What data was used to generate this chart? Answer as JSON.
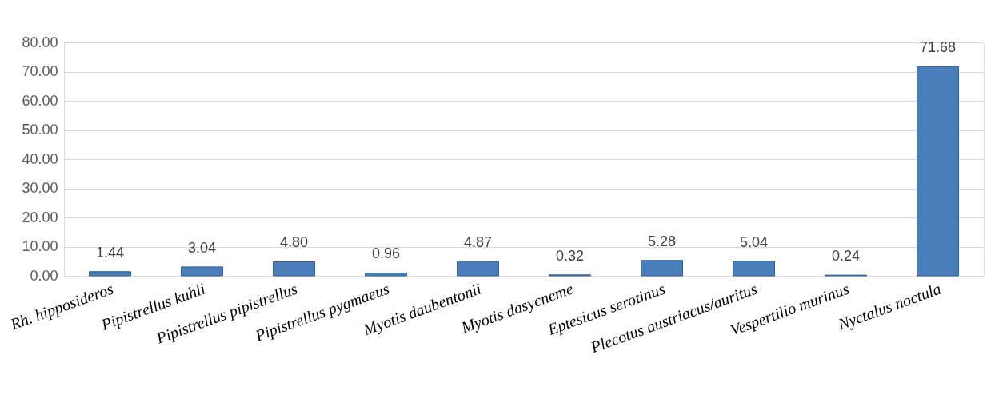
{
  "chart_data": {
    "type": "bar",
    "categories": [
      "Rh. hipposideros",
      "Pipistrellus kuhli",
      "Pipistrellus pipistrellus",
      "Pipistrellus pygmaeus",
      "Myotis daubentonii",
      "Myotis dasycneme",
      "Eptesicus serotinus",
      "Plecotus austriacus/auritus",
      "Vespertilio murinus",
      "Nyctalus noctula"
    ],
    "values": [
      1.44,
      3.04,
      4.8,
      0.96,
      4.87,
      0.32,
      5.28,
      5.04,
      0.24,
      71.68
    ],
    "color": "#4a7ebb",
    "ylim": [
      0,
      80
    ],
    "yticks": [
      {
        "value": 0,
        "label": "0.00"
      },
      {
        "value": 10,
        "label": "10.00"
      },
      {
        "value": 20,
        "label": "20.00"
      },
      {
        "value": 30,
        "label": "30.00"
      },
      {
        "value": 40,
        "label": "40.00"
      },
      {
        "value": 50,
        "label": "50.00"
      },
      {
        "value": 60,
        "label": "60.00"
      },
      {
        "value": 70,
        "label": "70.00"
      },
      {
        "value": 80,
        "label": "80.00"
      }
    ],
    "value_labels": [
      "1.44",
      "3.04",
      "4.80",
      "0.96",
      "4.87",
      "0.32",
      "5.28",
      "5.04",
      "0.24",
      "71.68"
    ],
    "grid": "y"
  }
}
